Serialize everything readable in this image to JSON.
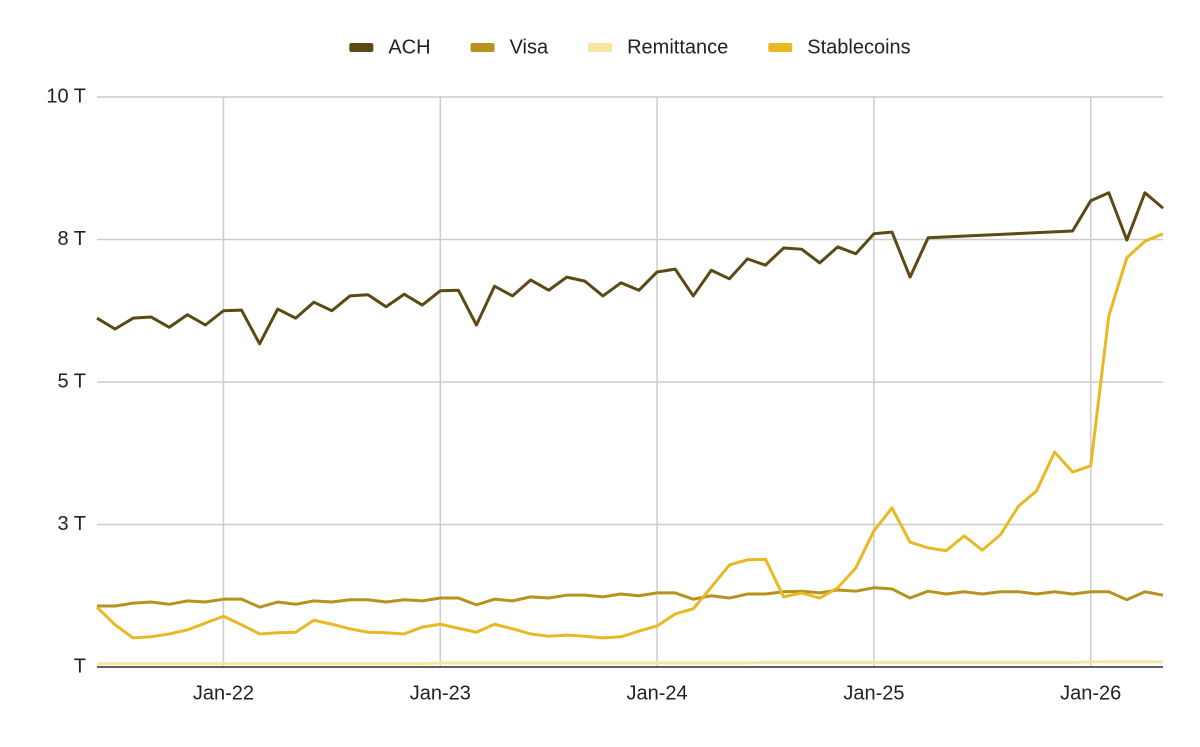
{
  "chart_data": {
    "type": "line",
    "x": [
      "2021-06",
      "2021-07",
      "2021-08",
      "2021-09",
      "2021-10",
      "2021-11",
      "2021-12",
      "2022-01",
      "2022-02",
      "2022-03",
      "2022-04",
      "2022-05",
      "2022-06",
      "2022-07",
      "2022-08",
      "2022-09",
      "2022-10",
      "2022-11",
      "2022-12",
      "2023-01",
      "2023-02",
      "2023-03",
      "2023-04",
      "2023-05",
      "2023-06",
      "2023-07",
      "2023-08",
      "2023-09",
      "2023-10",
      "2023-11",
      "2023-12",
      "2024-01",
      "2024-02",
      "2024-03",
      "2024-04",
      "2024-05",
      "2024-06",
      "2024-07",
      "2024-08",
      "2024-09",
      "2024-10",
      "2024-11",
      "2024-12",
      "2025-01",
      "2025-02",
      "2025-03",
      "2025-04",
      "2025-05",
      "2025-06",
      "2025-07",
      "2025-08",
      "2025-09",
      "2025-10",
      "2025-11",
      "2025-12",
      "2026-01",
      "2026-02",
      "2026-03",
      "2026-04",
      "2026-05"
    ],
    "series": [
      {
        "name": "ACH",
        "color": "#5c4a14",
        "x": [
          "2021-06",
          "2021-07",
          "2021-08",
          "2021-09",
          "2021-10",
          "2021-11",
          "2021-12",
          "2022-01",
          "2022-02",
          "2022-03",
          "2022-04",
          "2022-05",
          "2022-06",
          "2022-07",
          "2022-08",
          "2022-09",
          "2022-10",
          "2022-11",
          "2022-12",
          "2023-01",
          "2023-02",
          "2023-03",
          "2023-04",
          "2023-05",
          "2023-06",
          "2023-07",
          "2023-08",
          "2023-09",
          "2023-10",
          "2023-11",
          "2023-12",
          "2024-01",
          "2024-02",
          "2024-03",
          "2024-04",
          "2024-05",
          "2024-06",
          "2024-07",
          "2024-08",
          "2024-09",
          "2024-10",
          "2024-11",
          "2024-12",
          "2025-01",
          "2025-02",
          "2025-03",
          "2025-04",
          "2025-12",
          "2026-01",
          "2026-02",
          "2026-03",
          "2026-04",
          "2026-05"
        ],
        "values": [
          6.12,
          5.93,
          6.12,
          6.14,
          5.96,
          6.18,
          6.0,
          6.25,
          6.26,
          5.67,
          6.28,
          6.12,
          6.4,
          6.25,
          6.51,
          6.53,
          6.32,
          6.54,
          6.35,
          6.6,
          6.61,
          6.0,
          6.68,
          6.51,
          6.79,
          6.61,
          6.84,
          6.77,
          6.51,
          6.74,
          6.61,
          6.93,
          6.98,
          6.51,
          6.96,
          6.81,
          7.16,
          7.05,
          7.35,
          7.33,
          7.09,
          7.37,
          7.25,
          7.6,
          7.63,
          6.84,
          7.53,
          7.65,
          8.18,
          8.32,
          7.49,
          8.32,
          8.05
        ]
      },
      {
        "name": "Visa",
        "color": "#b8921f",
        "values": [
          1.07,
          1.07,
          1.12,
          1.14,
          1.1,
          1.16,
          1.14,
          1.19,
          1.19,
          1.05,
          1.14,
          1.1,
          1.16,
          1.14,
          1.18,
          1.18,
          1.14,
          1.18,
          1.16,
          1.21,
          1.21,
          1.09,
          1.19,
          1.16,
          1.23,
          1.21,
          1.26,
          1.26,
          1.23,
          1.28,
          1.25,
          1.3,
          1.3,
          1.19,
          1.25,
          1.21,
          1.28,
          1.28,
          1.32,
          1.33,
          1.3,
          1.35,
          1.33,
          1.39,
          1.37,
          1.21,
          1.33,
          1.28,
          1.32,
          1.28,
          1.32,
          1.32,
          1.28,
          1.32,
          1.28,
          1.32,
          1.32,
          1.18,
          1.32,
          1.26
        ]
      },
      {
        "name": "Remittance",
        "color": "#f8e6a0",
        "values": [
          0.06,
          0.06,
          0.06,
          0.06,
          0.06,
          0.06,
          0.06,
          0.06,
          0.06,
          0.06,
          0.06,
          0.06,
          0.06,
          0.06,
          0.06,
          0.06,
          0.06,
          0.06,
          0.06,
          0.07,
          0.07,
          0.07,
          0.07,
          0.07,
          0.07,
          0.07,
          0.07,
          0.07,
          0.07,
          0.07,
          0.07,
          0.07,
          0.07,
          0.07,
          0.07,
          0.07,
          0.07,
          0.08,
          0.08,
          0.08,
          0.08,
          0.08,
          0.08,
          0.08,
          0.08,
          0.08,
          0.08,
          0.08,
          0.08,
          0.08,
          0.08,
          0.08,
          0.08,
          0.08,
          0.08,
          0.09,
          0.09,
          0.09,
          0.09,
          0.09
        ]
      },
      {
        "name": "Stablecoins",
        "color": "#e8b923",
        "values": [
          1.05,
          0.74,
          0.51,
          0.53,
          0.58,
          0.65,
          0.77,
          0.89,
          0.74,
          0.58,
          0.6,
          0.61,
          0.82,
          0.75,
          0.67,
          0.61,
          0.6,
          0.58,
          0.7,
          0.75,
          0.68,
          0.61,
          0.75,
          0.67,
          0.58,
          0.54,
          0.56,
          0.54,
          0.51,
          0.53,
          0.63,
          0.72,
          0.93,
          1.02,
          1.4,
          1.79,
          1.88,
          1.89,
          1.23,
          1.3,
          1.21,
          1.39,
          1.74,
          2.39,
          2.79,
          2.19,
          2.09,
          2.04,
          2.3,
          2.05,
          2.32,
          2.82,
          3.09,
          3.77,
          3.42,
          3.53,
          6.16,
          7.18,
          7.47,
          7.6
        ]
      }
    ],
    "xlim": [
      "2021-06",
      "2026-05"
    ],
    "xticks": [
      {
        "value": "2022-01",
        "label": "Jan-22"
      },
      {
        "value": "2023-01",
        "label": "Jan-23"
      },
      {
        "value": "2024-01",
        "label": "Jan-24"
      },
      {
        "value": "2025-01",
        "label": "Jan-25"
      },
      {
        "value": "2026-01",
        "label": "Jan-26"
      }
    ],
    "ylim": [
      0,
      10
    ],
    "yticks": [
      {
        "value": 0,
        "label": "T"
      },
      {
        "value": 2.5,
        "label": "3 T"
      },
      {
        "value": 5,
        "label": "5 T"
      },
      {
        "value": 7.5,
        "label": "8 T"
      },
      {
        "value": 10,
        "label": "10 T"
      }
    ],
    "grid": true,
    "legend": "top"
  }
}
